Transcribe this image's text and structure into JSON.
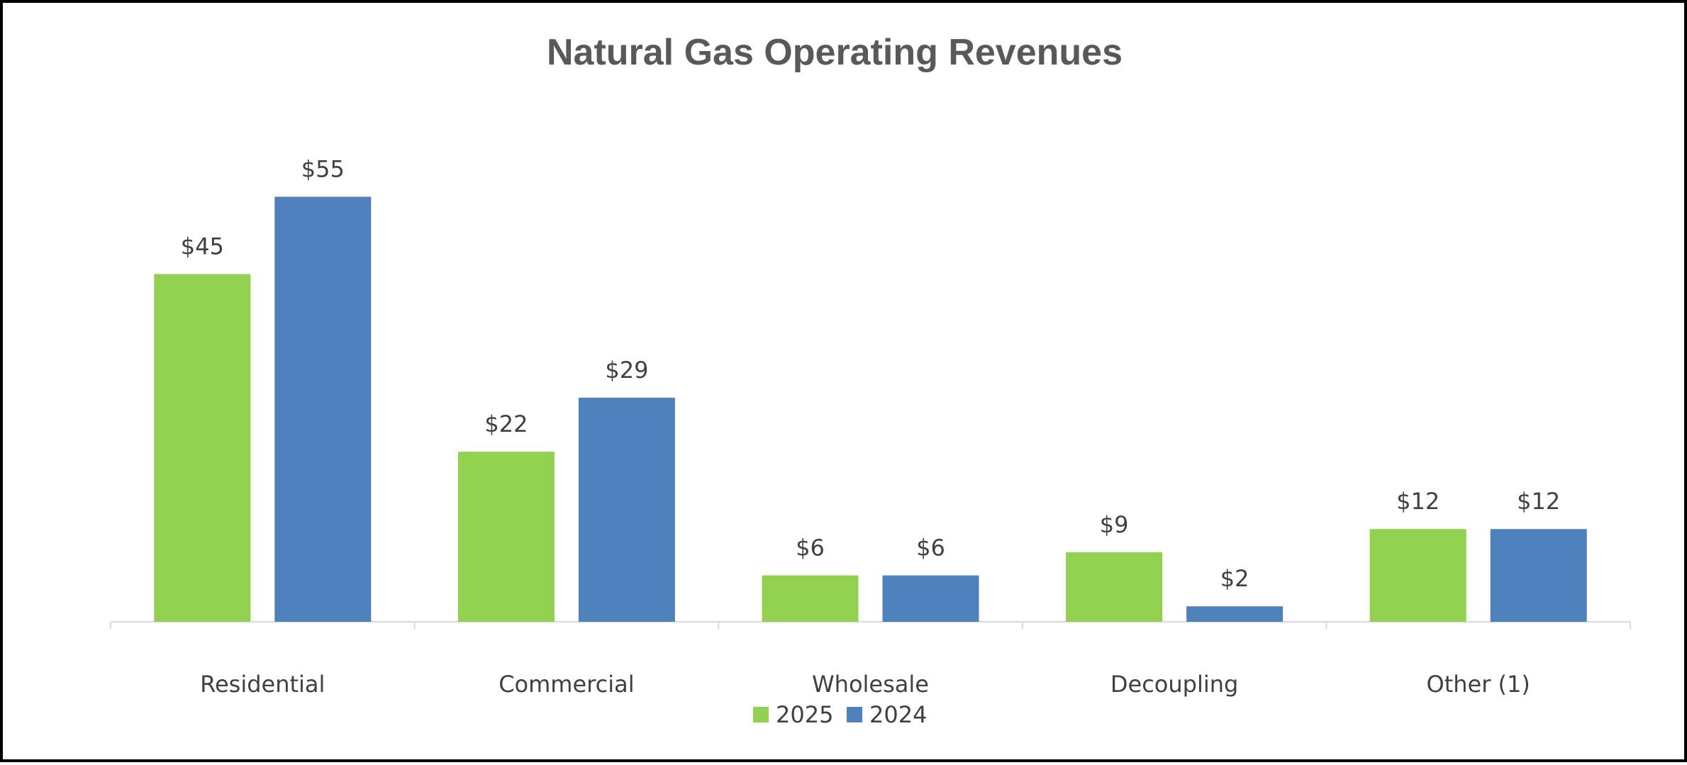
{
  "chart_data": {
    "type": "bar",
    "title": "Natural Gas Operating Revenues",
    "xlabel": "",
    "ylabel": "",
    "categories": [
      "Residential",
      "Commercial",
      "Wholesale",
      "Decoupling",
      "Other (1)"
    ],
    "series": [
      {
        "name": "2025",
        "color": "#92D050",
        "values": [
          45,
          22,
          6,
          9,
          12
        ],
        "labels": [
          "$45",
          "$22",
          "$6",
          "$9",
          "$12"
        ]
      },
      {
        "name": "2024",
        "color": "#4F81BD",
        "values": [
          55,
          29,
          6,
          2,
          12
        ],
        "labels": [
          "$55",
          "$29",
          "$6",
          "$2",
          "$12"
        ]
      }
    ],
    "ylim": [
      0,
      60
    ],
    "grid": false,
    "legend": "bottom"
  },
  "colors": {
    "border": "#000000",
    "axis": "#D9D9D9",
    "text": "#404040",
    "title": "#595959"
  }
}
